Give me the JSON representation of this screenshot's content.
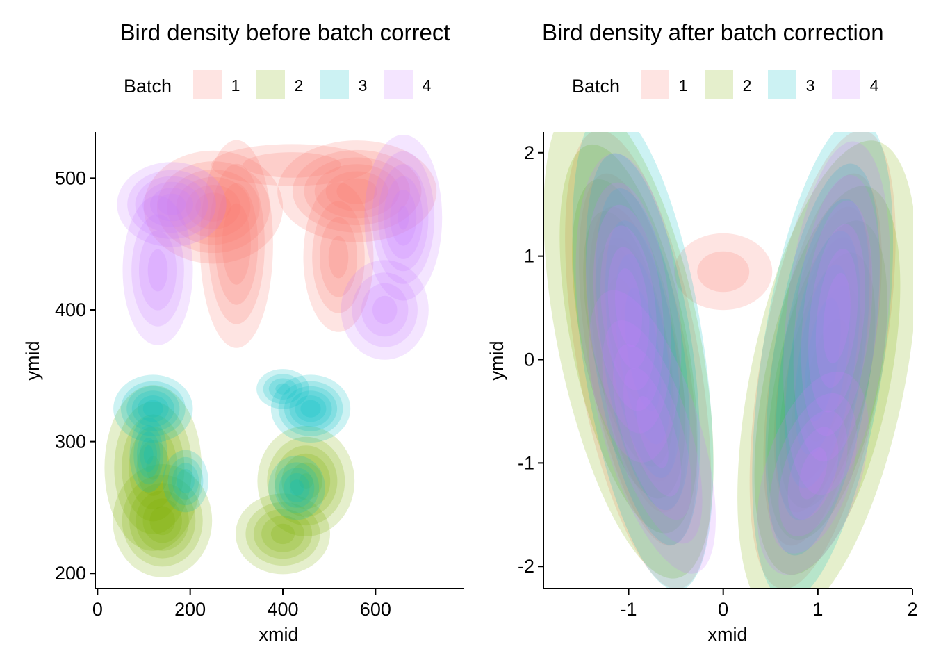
{
  "chart_data": [
    {
      "type": "density2d",
      "title": "Bird density before batch correct",
      "xlabel": "xmid",
      "ylabel": "ymid",
      "xlim": [
        -5,
        790
      ],
      "ylim": [
        188,
        535
      ],
      "xticks": [
        0,
        200,
        400,
        600
      ],
      "yticks": [
        200,
        300,
        400,
        500
      ],
      "legend": {
        "title": "Batch",
        "position": "top"
      },
      "series": [
        {
          "name": "1",
          "color": "#F8766D",
          "alpha": 0.2,
          "clusters": [
            {
              "cx": 250,
              "cy": 478,
              "sx": 70,
              "sy": 20,
              "rot": 0,
              "w": 1.0
            },
            {
              "cx": 300,
              "cy": 450,
              "sx": 40,
              "sy": 40,
              "rot": 0,
              "w": 0.7
            },
            {
              "cx": 560,
              "cy": 490,
              "sx": 80,
              "sy": 18,
              "rot": 0,
              "w": 1.0
            },
            {
              "cx": 520,
              "cy": 440,
              "sx": 40,
              "sy": 30,
              "rot": 0,
              "w": 0.6
            },
            {
              "cx": 420,
              "cy": 510,
              "sx": 110,
              "sy": 10,
              "rot": 0,
              "w": 0.35
            }
          ]
        },
        {
          "name": "2",
          "color": "#7CAE00",
          "alpha": 0.2,
          "clusters": [
            {
              "cx": 120,
              "cy": 280,
              "sx": 50,
              "sy": 30,
              "rot": 0,
              "w": 0.9
            },
            {
              "cx": 140,
              "cy": 240,
              "sx": 50,
              "sy": 20,
              "rot": 0,
              "w": 1.0
            },
            {
              "cx": 450,
              "cy": 270,
              "sx": 50,
              "sy": 20,
              "rot": 0,
              "w": 0.9
            },
            {
              "cx": 400,
              "cy": 230,
              "sx": 50,
              "sy": 15,
              "rot": 0,
              "w": 0.8
            }
          ]
        },
        {
          "name": "3",
          "color": "#00BFC4",
          "alpha": 0.2,
          "clusters": [
            {
              "cx": 120,
              "cy": 325,
              "sx": 40,
              "sy": 12,
              "rot": 0,
              "w": 1.0
            },
            {
              "cx": 110,
              "cy": 290,
              "sx": 20,
              "sy": 14,
              "rot": 0,
              "w": 0.8
            },
            {
              "cx": 190,
              "cy": 270,
              "sx": 25,
              "sy": 12,
              "rot": 0,
              "w": 0.7
            },
            {
              "cx": 460,
              "cy": 325,
              "sx": 40,
              "sy": 12,
              "rot": 0,
              "w": 1.0
            },
            {
              "cx": 430,
              "cy": 265,
              "sx": 30,
              "sy": 12,
              "rot": 0,
              "w": 0.8
            },
            {
              "cx": 400,
              "cy": 340,
              "sx": 30,
              "sy": 8,
              "rot": 0,
              "w": 0.6
            }
          ]
        },
        {
          "name": "4",
          "color": "#C77CFF",
          "alpha": 0.2,
          "clusters": [
            {
              "cx": 160,
              "cy": 480,
              "sx": 55,
              "sy": 15,
              "rot": 0,
              "w": 1.0
            },
            {
              "cx": 130,
              "cy": 430,
              "sx": 40,
              "sy": 30,
              "rot": 0,
              "w": 0.6
            },
            {
              "cx": 660,
              "cy": 470,
              "sx": 40,
              "sy": 30,
              "rot": 0,
              "w": 0.9
            },
            {
              "cx": 620,
              "cy": 400,
              "sx": 50,
              "sy": 20,
              "rot": 0,
              "w": 0.6
            }
          ]
        }
      ]
    },
    {
      "type": "density2d",
      "title": "Bird density after batch correction",
      "xlabel": "xmid",
      "ylabel": "ymid",
      "xlim": [
        -1.9,
        2.0
      ],
      "ylim": [
        -2.22,
        2.2
      ],
      "xticks": [
        -1,
        0,
        1,
        2
      ],
      "yticks": [
        -2,
        -1,
        0,
        1,
        2
      ],
      "legend": {
        "title": "Batch",
        "position": "top"
      },
      "series": [
        {
          "name": "1",
          "color": "#F8766D",
          "alpha": 0.2,
          "clusters": [
            {
              "cx": -0.9,
              "cy": 0.0,
              "sx": 0.3,
              "sy": 1.05,
              "rot": 0.18,
              "w": 1.0
            },
            {
              "cx": 1.05,
              "cy": 0.0,
              "sx": 0.3,
              "sy": 1.05,
              "rot": -0.18,
              "w": 1.0
            },
            {
              "cx": 0.0,
              "cy": 0.85,
              "sx": 0.35,
              "sy": 0.25,
              "rot": 0,
              "w": 0.3
            }
          ]
        },
        {
          "name": "2",
          "color": "#7CAE00",
          "alpha": 0.2,
          "clusters": [
            {
              "cx": -1.0,
              "cy": 0.2,
              "sx": 0.35,
              "sy": 1.1,
              "rot": 0.2,
              "w": 1.0
            },
            {
              "cx": 1.1,
              "cy": -0.2,
              "sx": 0.38,
              "sy": 1.1,
              "rot": -0.2,
              "w": 1.0
            }
          ]
        },
        {
          "name": "3",
          "color": "#00BFC4",
          "alpha": 0.2,
          "clusters": [
            {
              "cx": -0.85,
              "cy": 0.1,
              "sx": 0.3,
              "sy": 1.1,
              "rot": 0.15,
              "w": 1.0
            },
            {
              "cx": 1.05,
              "cy": 0.0,
              "sx": 0.3,
              "sy": 1.1,
              "rot": -0.15,
              "w": 1.0
            }
          ]
        },
        {
          "name": "4",
          "color": "#C77CFF",
          "alpha": 0.2,
          "clusters": [
            {
              "cx": -1.0,
              "cy": 0.5,
              "sx": 0.25,
              "sy": 0.7,
              "rot": 0.1,
              "w": 1.0
            },
            {
              "cx": -0.75,
              "cy": -0.7,
              "sx": 0.25,
              "sy": 0.7,
              "rot": 0.3,
              "w": 0.8
            },
            {
              "cx": 1.2,
              "cy": 0.4,
              "sx": 0.25,
              "sy": 0.8,
              "rot": -0.1,
              "w": 1.0
            },
            {
              "cx": 0.95,
              "cy": -1.1,
              "sx": 0.25,
              "sy": 0.5,
              "rot": -0.3,
              "w": 0.8
            }
          ]
        }
      ]
    }
  ]
}
